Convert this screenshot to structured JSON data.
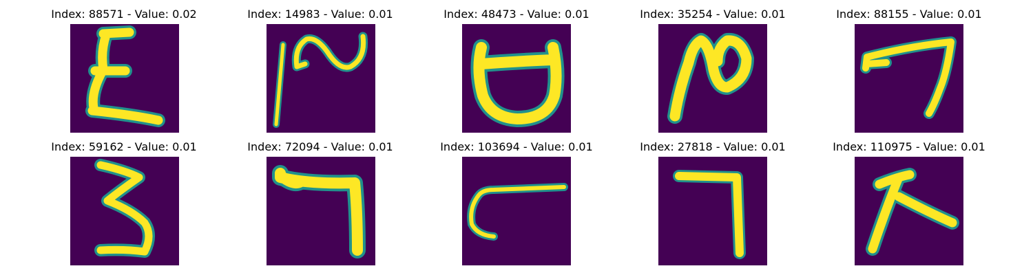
{
  "colormap": {
    "background": "#440154",
    "edge": "#21918c",
    "stroke": "#fde725"
  },
  "panels": [
    {
      "title": "Index: 88571 - Value: 0.02",
      "glyph": "epsilon-like-character"
    },
    {
      "title": "Index: 14983 - Value: 0.01",
      "glyph": "squiggle-character"
    },
    {
      "title": "Index: 48473 - Value: 0.01",
      "glyph": "cup-shaped-character"
    },
    {
      "title": "Index: 35254 - Value: 0.01",
      "glyph": "n-loop-character"
    },
    {
      "title": "Index: 88155 - Value: 0.01",
      "glyph": "seven-like-character"
    },
    {
      "title": "Index: 59162 - Value: 0.01",
      "glyph": "three-like-character"
    },
    {
      "title": "Index: 72094 - Value: 0.01",
      "glyph": "hook-character"
    },
    {
      "title": "Index: 103694 - Value: 0.01",
      "glyph": "c-with-line-character"
    },
    {
      "title": "Index: 27818 - Value: 0.01",
      "glyph": "seven-like-character"
    },
    {
      "title": "Index: 110975 - Value: 0.01",
      "glyph": "k-like-character"
    }
  ]
}
